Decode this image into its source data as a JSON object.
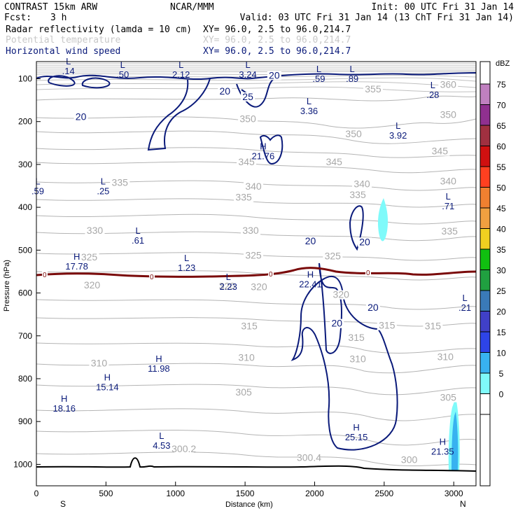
{
  "header": {
    "model": "CONTRAST 15km ARW",
    "org": "NCAR/MMM",
    "init": "Init: 00 UTC Fri 31 Jan 14",
    "fcst_label": "Fcst:",
    "fcst_value": "3 h",
    "valid": "Valid: 03 UTC Fri 31 Jan 14 (13 ChT Fri 31 Jan 14)",
    "fields": [
      {
        "name": "Radar reflectivity (lamda = 10 cm)",
        "xy": "XY=  96.0,  2.5 to  96.0,214.7",
        "color": "#000000"
      },
      {
        "name": "Potential temperature",
        "xy": "XY=  96.0,  2.5 to  96.0,214.7",
        "color": "#c8c8c8"
      },
      {
        "name": "Horizontal wind speed",
        "xy": "XY=  96.0,  2.5 to  96.0,214.7",
        "color": "#0a1a7a"
      }
    ]
  },
  "chart_data": {
    "type": "cross-section",
    "xlabel": "Distance (km)",
    "ylabel": "Pressure (hPa)",
    "xlim": [
      0,
      3160
    ],
    "ylim": [
      1050,
      60
    ],
    "x_ticks": [
      0,
      500,
      1000,
      1500,
      2000,
      2500,
      3000
    ],
    "y_ticks": [
      100,
      200,
      300,
      400,
      500,
      600,
      700,
      800,
      900,
      1000
    ],
    "x_endpoints": {
      "left": "S",
      "right": "N"
    },
    "colorbar": {
      "unit": "dBZ",
      "levels": [
        0,
        5,
        10,
        15,
        20,
        25,
        30,
        35,
        40,
        45,
        50,
        55,
        60,
        65,
        70,
        75
      ],
      "colors": [
        "#ffffff",
        "#7ffafa",
        "#38b2f0",
        "#2e44e8",
        "#4040c8",
        "#3a7ab8",
        "#20a040",
        "#10c010",
        "#f0d020",
        "#f0a040",
        "#f08030",
        "#ff4020",
        "#d01010",
        "#a03040",
        "#903090",
        "#c080c0"
      ]
    },
    "theta_labels": [
      {
        "text": "360",
        "x": 2960,
        "p": 120
      },
      {
        "text": "355",
        "x": 2420,
        "p": 130
      },
      {
        "text": "350",
        "x": 2960,
        "p": 190
      },
      {
        "text": "350",
        "x": 1520,
        "p": 200
      },
      {
        "text": "350",
        "x": 2280,
        "p": 235
      },
      {
        "text": "345",
        "x": 2900,
        "p": 275
      },
      {
        "text": "345",
        "x": 1510,
        "p": 300
      },
      {
        "text": "345",
        "x": 2140,
        "p": 300
      },
      {
        "text": "340",
        "x": 2960,
        "p": 345
      },
      {
        "text": "340",
        "x": 1560,
        "p": 357
      },
      {
        "text": "340",
        "x": 2340,
        "p": 352
      },
      {
        "text": "335",
        "x": 600,
        "p": 348
      },
      {
        "text": "335",
        "x": 1490,
        "p": 383
      },
      {
        "text": "335",
        "x": 2310,
        "p": 377
      },
      {
        "text": "335",
        "x": 2970,
        "p": 462
      },
      {
        "text": "330",
        "x": 420,
        "p": 460
      },
      {
        "text": "330",
        "x": 1540,
        "p": 460
      },
      {
        "text": "325",
        "x": 1560,
        "p": 518
      },
      {
        "text": "325",
        "x": 2130,
        "p": 520
      },
      {
        "text": "325",
        "x": 380,
        "p": 522
      },
      {
        "text": "320",
        "x": 400,
        "p": 588
      },
      {
        "text": "320",
        "x": 1370,
        "p": 590
      },
      {
        "text": "320",
        "x": 1600,
        "p": 592
      },
      {
        "text": "320",
        "x": 2190,
        "p": 610
      },
      {
        "text": "315",
        "x": 2520,
        "p": 682
      },
      {
        "text": "315",
        "x": 1530,
        "p": 683
      },
      {
        "text": "315",
        "x": 2850,
        "p": 683
      },
      {
        "text": "315",
        "x": 2300,
        "p": 710
      },
      {
        "text": "310",
        "x": 1510,
        "p": 757
      },
      {
        "text": "310",
        "x": 2310,
        "p": 760
      },
      {
        "text": "310",
        "x": 2940,
        "p": 755
      },
      {
        "text": "310",
        "x": 450,
        "p": 770
      },
      {
        "text": "305",
        "x": 1490,
        "p": 838
      },
      {
        "text": "305",
        "x": 2960,
        "p": 850
      },
      {
        "text": "300.2",
        "x": 1060,
        "p": 970
      },
      {
        "text": "300.4",
        "x": 1960,
        "p": 990
      },
      {
        "text": "300",
        "x": 2680,
        "p": 995
      }
    ],
    "wind_contour_labels": [
      {
        "text": "20",
        "x": 320,
        "p": 195
      },
      {
        "text": "20",
        "x": 1355,
        "p": 135
      },
      {
        "text": "20",
        "x": 1710,
        "p": 98
      },
      {
        "text": "25",
        "x": 1520,
        "p": 148
      },
      {
        "text": "20",
        "x": 1970,
        "p": 485
      },
      {
        "text": "20",
        "x": 2360,
        "p": 487
      },
      {
        "text": "20",
        "x": 2160,
        "p": 677
      },
      {
        "text": "20",
        "x": 2420,
        "p": 640
      }
    ],
    "wind_extrema": [
      {
        "kind": "L",
        "value": ".14",
        "x": 230,
        "p": 70
      },
      {
        "kind": "L",
        "value": ".50",
        "x": 620,
        "p": 78
      },
      {
        "kind": "L",
        "value": "2.12",
        "x": 1040,
        "p": 78
      },
      {
        "kind": "L",
        "value": "3.24",
        "x": 1520,
        "p": 78
      },
      {
        "kind": "L",
        "value": ".59",
        "x": 2030,
        "p": 88
      },
      {
        "kind": "L",
        "value": ".89",
        "x": 2270,
        "p": 88
      },
      {
        "kind": "L",
        "value": ".28",
        "x": 2850,
        "p": 125
      },
      {
        "kind": "L",
        "value": "3.36",
        "x": 1960,
        "p": 163
      },
      {
        "kind": "L",
        "value": "3.92",
        "x": 2600,
        "p": 220
      },
      {
        "kind": "H",
        "value": "21.76",
        "x": 1630,
        "p": 268
      },
      {
        "kind": "L",
        "value": ".25",
        "x": 480,
        "p": 350
      },
      {
        "kind": "L",
        "value": ".59",
        "x": 10,
        "p": 350
      },
      {
        "kind": "L",
        "value": ".71",
        "x": 2960,
        "p": 385
      },
      {
        "kind": "L",
        "value": ".61",
        "x": 730,
        "p": 465
      },
      {
        "kind": "H",
        "value": "17.78",
        "x": 290,
        "p": 526
      },
      {
        "kind": "L",
        "value": "1.23",
        "x": 1080,
        "p": 529
      },
      {
        "kind": "L",
        "value": "2.23",
        "x": 1380,
        "p": 573
      },
      {
        "kind": "H",
        "value": "22.41",
        "x": 1970,
        "p": 567
      },
      {
        "kind": "L",
        "value": ".21",
        "x": 3080,
        "p": 622
      },
      {
        "kind": "H",
        "value": "11.98",
        "x": 880,
        "p": 764
      },
      {
        "kind": "H",
        "value": "15.14",
        "x": 510,
        "p": 807
      },
      {
        "kind": "H",
        "value": "18.16",
        "x": 200,
        "p": 857
      },
      {
        "kind": "H",
        "value": "25.15",
        "x": 2300,
        "p": 924
      },
      {
        "kind": "L",
        "value": "4.53",
        "x": 900,
        "p": 944
      },
      {
        "kind": "H",
        "value": "21.35",
        "x": 2920,
        "p": 958
      }
    ],
    "freezing_level_label": "0"
  }
}
